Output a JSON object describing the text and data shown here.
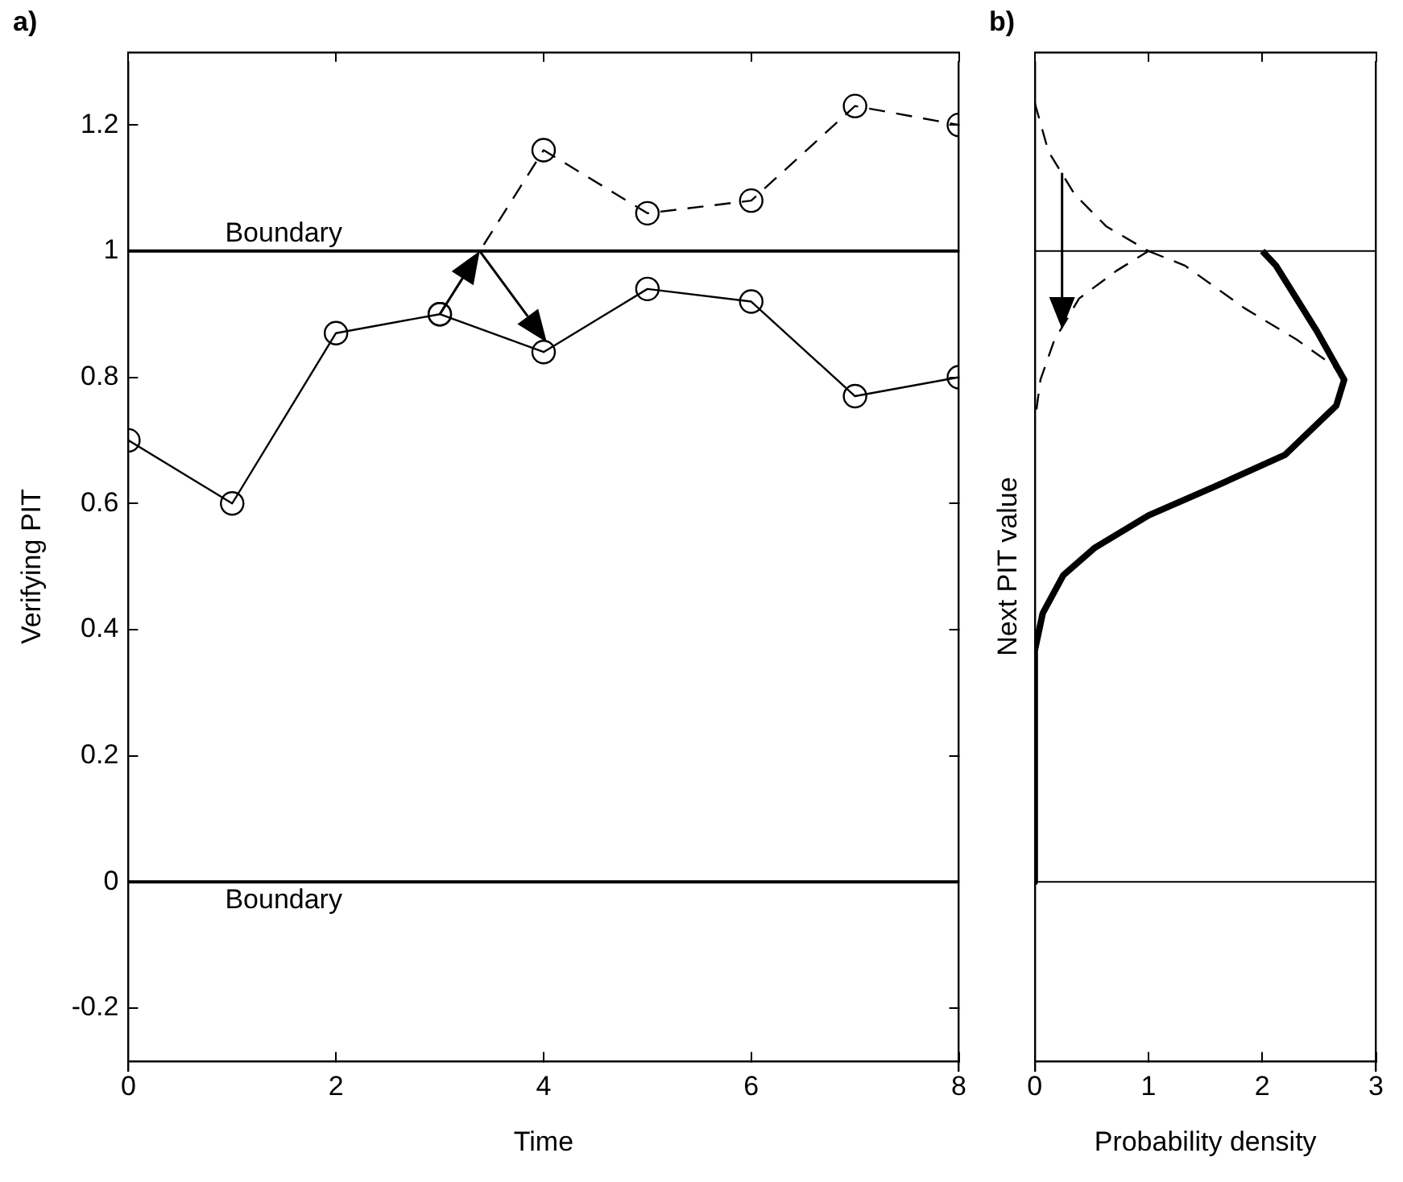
{
  "chart_data": [
    {
      "type": "line",
      "title": "a)",
      "xlabel": "Time",
      "ylabel": "Verifying PIT",
      "xlim": [
        0,
        8
      ],
      "xticks": [
        0,
        2,
        4,
        6,
        8
      ],
      "ylim": [
        -0.3,
        1.3
      ],
      "yticks": [
        -0.2,
        0,
        0.2,
        0.4,
        0.6,
        0.8,
        1,
        1.2
      ],
      "grid": false,
      "legend": false,
      "marker": "circle",
      "series": [
        {
          "color": "#000000",
          "line_style": "solid",
          "x": [
            0,
            1,
            2,
            3,
            4,
            5,
            6,
            7,
            8
          ],
          "values": [
            0.7,
            0.6,
            0.87,
            0.9,
            0.84,
            0.94,
            0.92,
            0.77,
            0.8
          ]
        },
        {
          "color": "#000000",
          "line_style": "dashed",
          "x": [
            3,
            4,
            5,
            6,
            7,
            8
          ],
          "values": [
            0.9,
            1.16,
            1.06,
            1.08,
            1.23,
            1.2
          ]
        }
      ],
      "ref_lines": [
        {
          "axis": "y",
          "value": 1,
          "label": "Boundary",
          "color": "#000000"
        },
        {
          "axis": "y",
          "value": 0,
          "label": "Boundary",
          "color": "#000000"
        }
      ]
    },
    {
      "type": "line",
      "title": "b)",
      "xlabel": "Probability density",
      "ylabel": "Next PIT value",
      "xlim": [
        0,
        3
      ],
      "xticks": [
        0,
        1,
        2,
        3
      ],
      "ylim": [
        -0.3,
        1.3
      ],
      "tick_labels": "x",
      "grid": false,
      "legend": false,
      "marker": "none",
      "series": [
        {
          "color": "#000000",
          "line_style": "solid",
          "x": [
            2.0,
            2.12,
            2.48,
            2.72,
            2.65,
            2.2,
            1.56,
            1.0,
            0.53,
            0.25,
            0.07,
            0.0,
            0.0
          ],
          "values": [
            1.0,
            0.977,
            0.873,
            0.796,
            0.755,
            0.677,
            0.625,
            0.581,
            0.53,
            0.486,
            0.426,
            0.367,
            0.0
          ]
        },
        {
          "color": "#000000",
          "line_style": "dashed",
          "x": [
            0.0,
            0.12,
            0.35,
            0.63,
            1.0,
            0.72,
            0.39,
            0.17,
            0.05,
            0.0
          ],
          "values": [
            1.235,
            1.158,
            1.09,
            1.039,
            1.0,
            0.969,
            0.925,
            0.858,
            0.796,
            0.729
          ]
        },
        {
          "color": "#000000",
          "line_style": "dashed",
          "x": [
            1.0,
            1.32,
            1.84,
            2.3,
            2.62,
            2.7
          ],
          "values": [
            1.0,
            0.977,
            0.91,
            0.86,
            0.819,
            0.8
          ]
        }
      ],
      "ref_lines": [
        {
          "axis": "y",
          "value": 1,
          "color": "#000000"
        },
        {
          "axis": "y",
          "value": 0,
          "color": "#000000"
        }
      ]
    }
  ]
}
